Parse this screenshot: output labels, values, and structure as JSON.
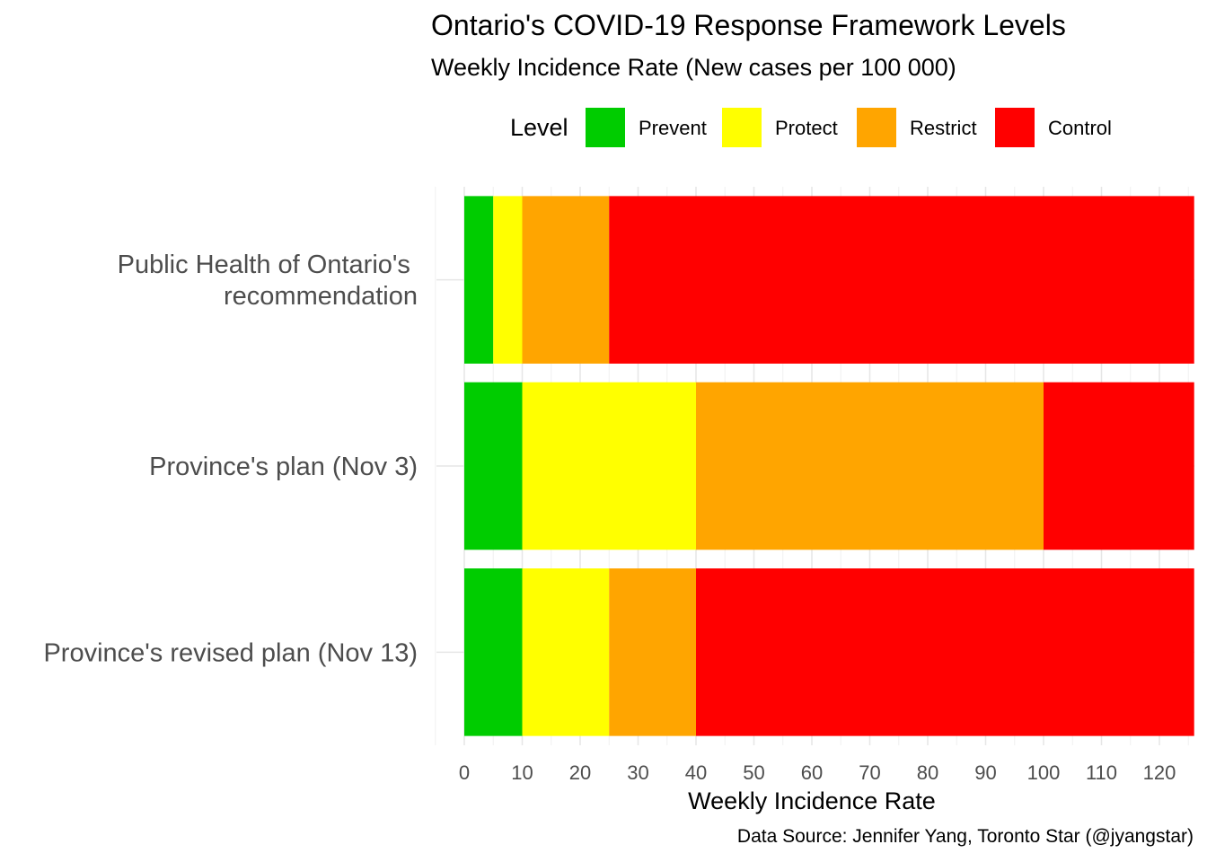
{
  "title": "Ontario's COVID-19 Response Framework Levels",
  "subtitle": "Weekly Incidence Rate (New cases per 100 000)",
  "caption": "Data Source: Jennifer Yang, Toronto Star (@jyangstar)",
  "legend": {
    "title": "Level",
    "items": [
      {
        "label": "Prevent",
        "color": "#00cc00"
      },
      {
        "label": "Protect",
        "color": "#ffff00"
      },
      {
        "label": "Restrict",
        "color": "#ffa500"
      },
      {
        "label": "Control",
        "color": "#ff0000"
      }
    ]
  },
  "chart_data": {
    "type": "bar",
    "orientation": "horizontal",
    "stacked": true,
    "title": "Ontario's COVID-19 Response Framework Levels",
    "subtitle": "Weekly Incidence Rate (New cases per 100 000)",
    "xlabel": "Weekly Incidence Rate",
    "ylabel": "",
    "xlim": [
      -5,
      126
    ],
    "x_ticks": [
      0,
      10,
      20,
      30,
      40,
      50,
      60,
      70,
      80,
      90,
      100,
      110,
      120
    ],
    "grid": true,
    "legend_position": "top",
    "categories": [
      "Public Health of Ontario's \nrecommendation",
      "Province's plan (Nov 3)",
      "Province's revised plan (Nov 13)"
    ],
    "series": [
      {
        "name": "Prevent",
        "color": "#00cc00",
        "values": [
          5,
          10,
          10
        ]
      },
      {
        "name": "Protect",
        "color": "#ffff00",
        "values": [
          5,
          30,
          15
        ]
      },
      {
        "name": "Restrict",
        "color": "#ffa500",
        "values": [
          15,
          60,
          15
        ]
      },
      {
        "name": "Control",
        "color": "#ff0000",
        "values": [
          101,
          26,
          86
        ]
      }
    ]
  }
}
